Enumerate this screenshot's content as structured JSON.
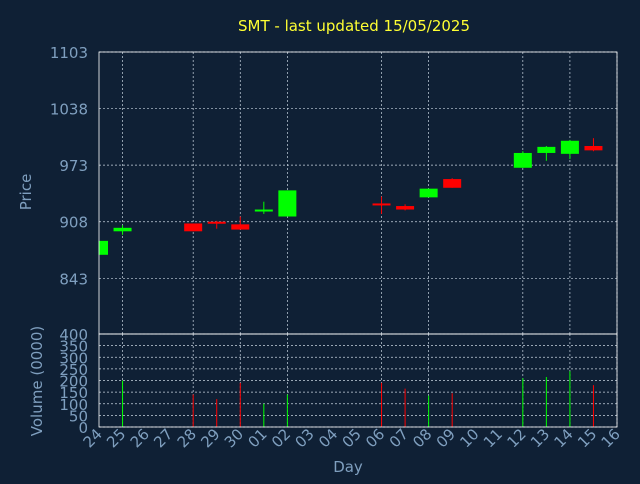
{
  "colors": {
    "background": "#0f2035",
    "title": "#ffff33",
    "axis_text": "#7f9fbf",
    "frame": "#ffffff",
    "grid": "#c8d4e0",
    "up": "#00ff00",
    "down": "#ff0000"
  },
  "chart_data": [
    {
      "type": "candlestick",
      "title": "SMT - last updated 15/05/2025",
      "ylabel": "Price",
      "xlabel": "",
      "ylim": [
        779,
        1103
      ],
      "y_ticks": [
        843,
        908,
        973,
        1038,
        1103
      ],
      "grid": true,
      "categories": [
        "24",
        "25",
        "26",
        "27",
        "28",
        "29",
        "30",
        "01",
        "02",
        "03",
        "04",
        "05",
        "06",
        "07",
        "08",
        "09",
        "10",
        "11",
        "12",
        "13",
        "14",
        "15",
        "16"
      ],
      "vertical_gridlines_at": [
        "25",
        "28",
        "30",
        "02",
        "06",
        "08",
        "12",
        "14",
        "16"
      ],
      "candles": [
        {
          "x": "24",
          "open": 870,
          "close": 886,
          "high": 886,
          "low": 870,
          "direction": "up"
        },
        {
          "x": "25",
          "open": 897,
          "close": 901,
          "high": 904,
          "low": 893,
          "direction": "up"
        },
        {
          "x": "28",
          "open": 906,
          "close": 897,
          "high": 906,
          "low": 897,
          "direction": "down"
        },
        {
          "x": "29",
          "open": 908,
          "close": 906,
          "high": 909,
          "low": 900,
          "direction": "down"
        },
        {
          "x": "30",
          "open": 905,
          "close": 899,
          "high": 914,
          "low": 899,
          "direction": "down"
        },
        {
          "x": "01",
          "open": 920,
          "close": 922,
          "high": 931,
          "low": 917,
          "direction": "up"
        },
        {
          "x": "02",
          "open": 914,
          "close": 944,
          "high": 944,
          "low": 914,
          "direction": "up"
        },
        {
          "x": "06",
          "open": 929,
          "close": 928,
          "high": 937,
          "low": 917,
          "direction": "down"
        },
        {
          "x": "07",
          "open": 926,
          "close": 922,
          "high": 928,
          "low": 921,
          "direction": "down"
        },
        {
          "x": "08",
          "open": 936,
          "close": 946,
          "high": 946,
          "low": 936,
          "direction": "up"
        },
        {
          "x": "09",
          "open": 957,
          "close": 947,
          "high": 958,
          "low": 947,
          "direction": "down"
        },
        {
          "x": "12",
          "open": 970,
          "close": 987,
          "high": 989,
          "low": 970,
          "direction": "up"
        },
        {
          "x": "13",
          "open": 987,
          "close": 994,
          "high": 995,
          "low": 978,
          "direction": "up"
        },
        {
          "x": "14",
          "open": 986,
          "close": 1001,
          "high": 1002,
          "low": 980,
          "direction": "up"
        },
        {
          "x": "15",
          "open": 995,
          "close": 990,
          "high": 1004,
          "low": 989,
          "direction": "down"
        }
      ]
    },
    {
      "type": "bar",
      "ylabel": "Volume (0000)",
      "xlabel": "Day",
      "ylim": [
        0,
        400
      ],
      "y_ticks": [
        0,
        50,
        100,
        150,
        200,
        250,
        300,
        350,
        400
      ],
      "grid": true,
      "categories": [
        "24",
        "25",
        "26",
        "27",
        "28",
        "29",
        "30",
        "01",
        "02",
        "03",
        "04",
        "05",
        "06",
        "07",
        "08",
        "09",
        "10",
        "11",
        "12",
        "13",
        "14",
        "15",
        "16"
      ],
      "bars": [
        {
          "x": "24",
          "value": 0,
          "direction": "up"
        },
        {
          "x": "25",
          "value": 200,
          "direction": "up"
        },
        {
          "x": "28",
          "value": 140,
          "direction": "down"
        },
        {
          "x": "29",
          "value": 120,
          "direction": "down"
        },
        {
          "x": "30",
          "value": 190,
          "direction": "down"
        },
        {
          "x": "01",
          "value": 100,
          "direction": "up"
        },
        {
          "x": "02",
          "value": 140,
          "direction": "up"
        },
        {
          "x": "06",
          "value": 190,
          "direction": "down"
        },
        {
          "x": "07",
          "value": 165,
          "direction": "down"
        },
        {
          "x": "08",
          "value": 135,
          "direction": "up"
        },
        {
          "x": "09",
          "value": 145,
          "direction": "down"
        },
        {
          "x": "12",
          "value": 210,
          "direction": "up"
        },
        {
          "x": "13",
          "value": 215,
          "direction": "up"
        },
        {
          "x": "14",
          "value": 240,
          "direction": "up"
        },
        {
          "x": "15",
          "value": 180,
          "direction": "down"
        }
      ]
    }
  ]
}
